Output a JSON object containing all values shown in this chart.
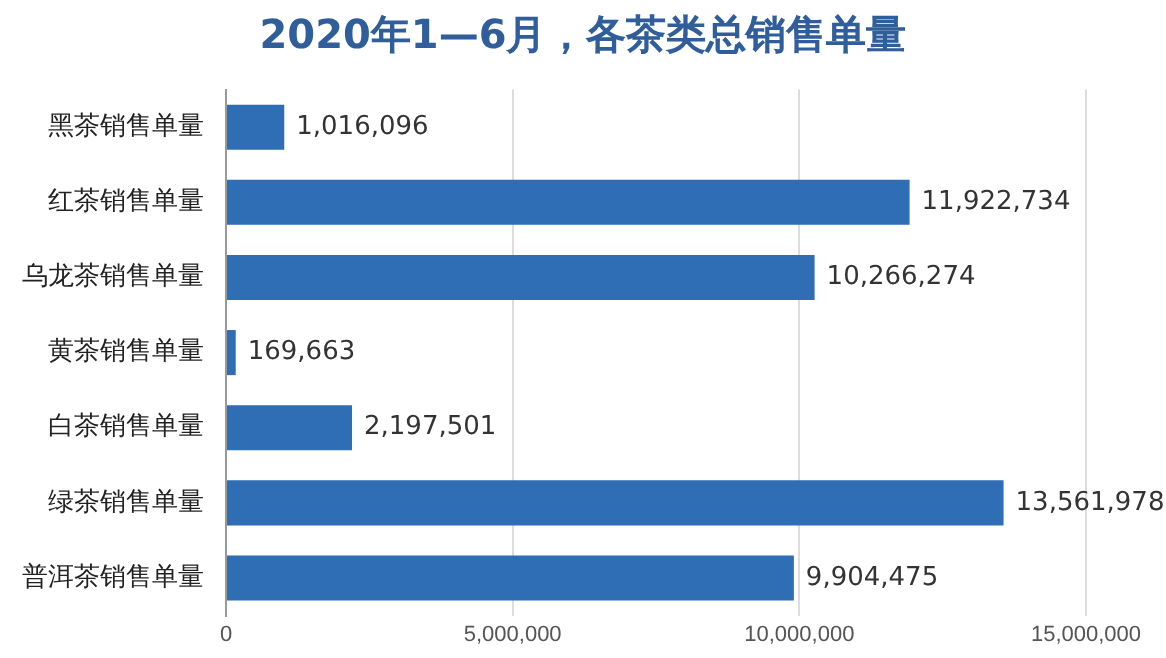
{
  "chart_data": {
    "type": "bar",
    "orientation": "horizontal",
    "title": "2020年1—6月，各茶类总销售单量",
    "categories": [
      "黑茶销售单量",
      "红茶销售单量",
      "乌龙茶销售单量",
      "黄茶销售单量",
      "白茶销售单量",
      "绿茶销售单量",
      "普洱茶销售单量"
    ],
    "values": [
      1016096,
      11922734,
      10266274,
      169663,
      2197501,
      13561978,
      9904475
    ],
    "value_labels": [
      "1,016,096",
      "11,922,734",
      "10,266,274",
      "169,663",
      "2,197,501",
      "13,561,978",
      "9,904,475"
    ],
    "color": "#2f6db5",
    "xlim": [
      0,
      15000000
    ],
    "xticks": [
      {
        "value": 0,
        "label": "0"
      },
      {
        "value": 5000000,
        "label": "5,000,000"
      },
      {
        "value": 10000000,
        "label": "10,000,000"
      },
      {
        "value": 15000000,
        "label": "15,000,000"
      }
    ],
    "grid": "x",
    "legend": false
  }
}
